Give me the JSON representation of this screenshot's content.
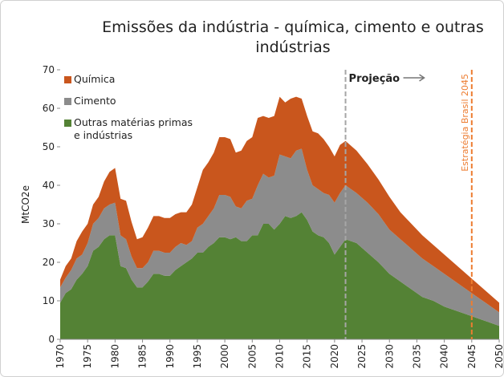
{
  "chart_data": {
    "type": "stacked_area",
    "title": "Emissões da indústria - química, cimento e outras indústrias",
    "ylabel": "MtCO2e",
    "x": [
      1970,
      1971,
      1972,
      1973,
      1974,
      1975,
      1976,
      1977,
      1978,
      1979,
      1980,
      1981,
      1982,
      1983,
      1984,
      1985,
      1986,
      1987,
      1988,
      1989,
      1990,
      1991,
      1992,
      1993,
      1994,
      1995,
      1996,
      1997,
      1998,
      1999,
      2000,
      2001,
      2002,
      2003,
      2004,
      2005,
      2006,
      2007,
      2008,
      2009,
      2010,
      2011,
      2012,
      2013,
      2014,
      2015,
      2016,
      2017,
      2018,
      2019,
      2020,
      2021,
      2022,
      2024,
      2026,
      2028,
      2030,
      2032,
      2034,
      2036,
      2038,
      2040,
      2042,
      2044,
      2046,
      2048,
      2050
    ],
    "series": [
      {
        "name": "Química",
        "color": "#c9561d",
        "values": [
          2,
          3,
          3,
          4.5,
          6,
          5,
          5,
          5.5,
          7,
          8.5,
          9,
          9.5,
          10,
          9,
          7.5,
          8,
          9,
          9,
          9,
          9,
          9,
          8.5,
          8,
          8.5,
          9.5,
          10.5,
          14,
          14,
          14.5,
          15,
          15,
          15,
          14,
          15,
          15.5,
          16,
          17.5,
          15,
          15.5,
          15.5,
          15,
          14,
          15.5,
          14,
          13,
          14,
          14,
          14.5,
          14,
          12.5,
          12,
          12.5,
          11.5,
          11,
          10,
          9,
          8.5,
          7,
          6.5,
          6,
          5.5,
          5,
          4.5,
          4,
          3.5,
          3,
          2.5
        ]
      },
      {
        "name": "Cimento",
        "color": "#8c8c8c",
        "values": [
          4,
          4,
          5,
          5.5,
          5,
          6,
          7,
          7.5,
          8,
          8,
          8.5,
          8,
          7.5,
          6,
          5,
          5,
          5,
          6,
          6,
          6,
          6,
          6,
          6,
          4.5,
          4.5,
          6.5,
          7.5,
          8,
          9,
          11,
          11,
          11,
          8,
          8.5,
          10.5,
          9.5,
          13,
          13,
          12,
          14,
          18,
          15.5,
          15.5,
          17,
          16.5,
          13,
          12,
          12,
          11.5,
          12.5,
          13.5,
          14,
          14,
          13,
          13,
          12.5,
          11.5,
          11,
          10.5,
          10,
          9,
          8.5,
          7.5,
          6.5,
          5.5,
          4.5,
          3.5
        ]
      },
      {
        "name": "Outras matérias primas e indústrias",
        "color": "#548235",
        "values": [
          9.5,
          12,
          13,
          15.5,
          17,
          19,
          23,
          24,
          26,
          27,
          27,
          19,
          18.5,
          15.5,
          13.5,
          13.5,
          15,
          17,
          17,
          16.5,
          16.5,
          18,
          19,
          20,
          21,
          22.5,
          22.5,
          24,
          25,
          26.5,
          26.5,
          26,
          26.5,
          25.5,
          25.5,
          27,
          27,
          30,
          30,
          28.5,
          30,
          32,
          31.5,
          32,
          33,
          31,
          28,
          27,
          26.5,
          25,
          22,
          24,
          26,
          25,
          22.5,
          20,
          17,
          15,
          13,
          11,
          10,
          8.5,
          7.5,
          6.5,
          5.5,
          4.5,
          3.5
        ]
      }
    ],
    "xlim": [
      1970,
      2050
    ],
    "xticks": [
      1970,
      1975,
      1980,
      1985,
      1990,
      1995,
      2000,
      2005,
      2010,
      2015,
      2020,
      2025,
      2030,
      2035,
      2040,
      2045,
      2050
    ],
    "ylim": [
      0,
      70
    ],
    "yticks": [
      0,
      10,
      20,
      30,
      40,
      50,
      60,
      70
    ],
    "annotations": [
      {
        "text": "Projeção",
        "x": 2022,
        "color": "#a6a6a6"
      },
      {
        "text": "Estratégia Brasil 2045",
        "x": 2045,
        "color": "#ed7d31"
      }
    ]
  }
}
